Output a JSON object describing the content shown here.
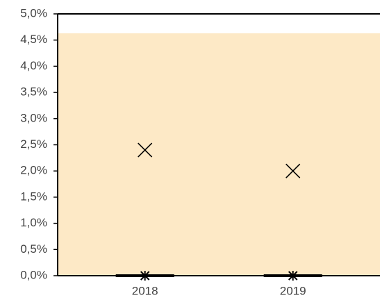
{
  "chart_data": {
    "type": "scatter",
    "categories": [
      "2018",
      "2019"
    ],
    "series": [
      {
        "marker": "x",
        "color": "#000000",
        "values": [
          2.4,
          2.0
        ]
      },
      {
        "marker": "asterisk",
        "color": "#000000",
        "values": [
          0,
          0
        ]
      }
    ],
    "band": {
      "values": [
        0,
        4.63
      ],
      "color": "#fde9c6"
    },
    "ylim": [
      0,
      5
    ],
    "yticks": [
      {
        "value": 0,
        "label": "0,0%"
      },
      {
        "value": 0.5,
        "label": "0,5%"
      },
      {
        "value": 1,
        "label": "1,0%"
      },
      {
        "value": 1.5,
        "label": "1,5%"
      },
      {
        "value": 2,
        "label": "2,0%"
      },
      {
        "value": 2.5,
        "label": "2,5%"
      },
      {
        "value": 3,
        "label": "3,0%"
      },
      {
        "value": 3.5,
        "label": "3,5%"
      },
      {
        "value": 4,
        "label": "4,0%"
      },
      {
        "value": 4.5,
        "label": "4,5%"
      },
      {
        "value": 5,
        "label": "5,0%"
      }
    ]
  }
}
